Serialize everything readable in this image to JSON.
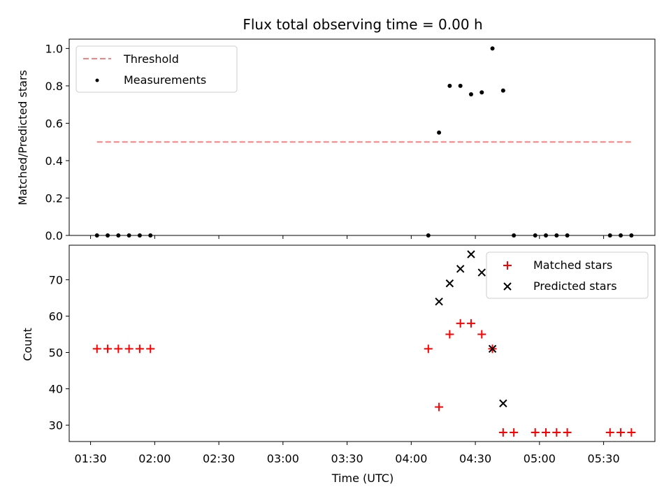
{
  "title": "Flux total observing time = 0.00 h",
  "chart_data": [
    {
      "type": "scatter",
      "name": "matched-ratio",
      "ylabel": "Matched/Predicted stars",
      "ylim": [
        0,
        1.05
      ],
      "yticks": [
        0.0,
        0.2,
        0.4,
        0.6,
        0.8,
        1.0
      ],
      "ytick_labels": [
        "0.0",
        "0.2",
        "0.4",
        "0.6",
        "0.8",
        "1.0"
      ],
      "legend": {
        "placement": "top-left"
      },
      "series": [
        {
          "name": "Threshold",
          "kind": "line",
          "style": "dashed",
          "color": "#ff7f7f",
          "x": [
            "01:33",
            "05:43"
          ],
          "values": [
            0.5,
            0.5
          ]
        },
        {
          "name": "Measurements",
          "kind": "scatter",
          "color": "#000000",
          "x": [
            "01:33",
            "01:38",
            "01:43",
            "01:48",
            "01:53",
            "01:58",
            "04:08",
            "04:13",
            "04:18",
            "04:23",
            "04:28",
            "04:33",
            "04:38",
            "04:43",
            "04:48",
            "04:58",
            "05:03",
            "05:08",
            "05:13",
            "05:33",
            "05:38",
            "05:43"
          ],
          "values": [
            0,
            0,
            0,
            0,
            0,
            0,
            0,
            0.55,
            0.8,
            0.8,
            0.755,
            0.765,
            1.0,
            0.775,
            0,
            0,
            0,
            0,
            0,
            0,
            0,
            0
          ]
        }
      ]
    },
    {
      "type": "scatter",
      "name": "star-counts",
      "xlabel": "Time (UTC)",
      "ylabel": "Count",
      "ylim": [
        25.5,
        79.5
      ],
      "yticks": [
        30,
        40,
        50,
        60,
        70
      ],
      "ytick_labels": [
        "30",
        "40",
        "50",
        "60",
        "70"
      ],
      "xlim": [
        "01:20",
        "05:54"
      ],
      "xticks": [
        "01:30",
        "02:00",
        "02:30",
        "03:00",
        "03:30",
        "04:00",
        "04:30",
        "05:00",
        "05:30"
      ],
      "xtick_labels": [
        "01:30",
        "02:00",
        "02:30",
        "03:00",
        "03:30",
        "04:00",
        "04:30",
        "05:00",
        "05:30"
      ],
      "legend": {
        "placement": "top-right"
      },
      "series": [
        {
          "name": "Matched stars",
          "marker": "plus",
          "color": "#ff0000",
          "x": [
            "01:33",
            "01:38",
            "01:43",
            "01:48",
            "01:53",
            "01:58",
            "04:08",
            "04:13",
            "04:18",
            "04:23",
            "04:28",
            "04:33",
            "04:38",
            "04:43",
            "04:48",
            "04:58",
            "05:03",
            "05:08",
            "05:13",
            "05:33",
            "05:38",
            "05:43"
          ],
          "values": [
            51,
            51,
            51,
            51,
            51,
            51,
            51,
            35,
            55,
            58,
            58,
            55,
            51,
            28,
            28,
            28,
            28,
            28,
            28,
            28,
            28,
            28
          ]
        },
        {
          "name": "Predicted stars",
          "marker": "x",
          "color": "#000000",
          "x": [
            "04:13",
            "04:18",
            "04:23",
            "04:28",
            "04:33",
            "04:38",
            "04:43"
          ],
          "values": [
            64,
            69,
            73,
            77,
            72,
            51,
            36
          ]
        }
      ]
    }
  ]
}
